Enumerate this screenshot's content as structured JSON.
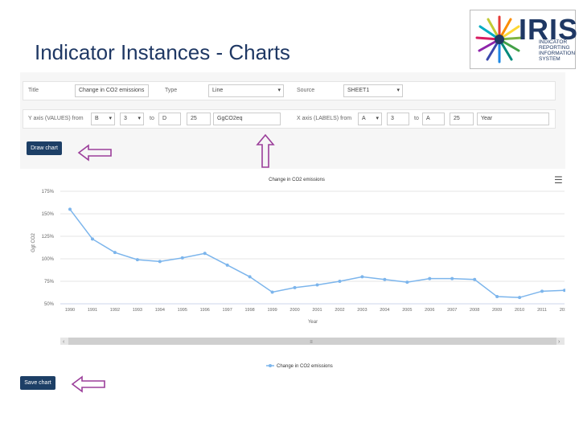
{
  "slide": {
    "title": "Indicator Instances - Charts"
  },
  "logo": {
    "name": "IRIS",
    "sub": [
      "INDICATOR",
      "REPORTING",
      "INFORMATION",
      "SYSTEM"
    ]
  },
  "form": {
    "title_label": "Title",
    "title_value": "Change in CO2 emissions",
    "type_label": "Type",
    "type_value": "Line",
    "source_label": "Source",
    "source_value": "SHEET1",
    "yaxis_label": "Y axis (VALUES) from",
    "y_from_col": "B",
    "y_from_row": "3",
    "y_to_label": "to",
    "y_to_col": "D",
    "y_to_row": "25",
    "y_series_name": "GgCO2eq",
    "xaxis_label": "X axis (LABELS) from",
    "x_from_col": "A",
    "x_from_row": "3",
    "x_to_label": "to",
    "x_to_col": "A",
    "x_to_row": "25",
    "x_name": "Year"
  },
  "buttons": {
    "draw": "Draw chart",
    "save": "Save chart"
  },
  "scrollbar": {
    "left": "‹",
    "right": "›",
    "thumb": "≡"
  },
  "chart_data": {
    "type": "line",
    "title": "Change in CO2 emissions",
    "xlabel": "Year",
    "ylabel": "Ggt CO2",
    "categories": [
      "1990",
      "1991",
      "1992",
      "1993",
      "1994",
      "1995",
      "1996",
      "1997",
      "1998",
      "1999",
      "2000",
      "2001",
      "2002",
      "2003",
      "2004",
      "2005",
      "2006",
      "2007",
      "2008",
      "2009",
      "2010",
      "2011",
      "2012"
    ],
    "series": [
      {
        "name": "Change in CO2 emissions",
        "values": [
          155,
          122,
          107,
          99,
          97,
          101,
          106,
          93,
          80,
          63,
          68,
          71,
          75,
          80,
          77,
          74,
          78,
          78,
          77,
          58,
          57,
          64,
          65
        ],
        "color": "#7cb5ec"
      }
    ],
    "yticks": [
      "50%",
      "75%",
      "100%",
      "125%",
      "150%",
      "175%"
    ],
    "ylim": [
      50,
      175
    ],
    "grid": true,
    "legend": "bottom-center"
  }
}
